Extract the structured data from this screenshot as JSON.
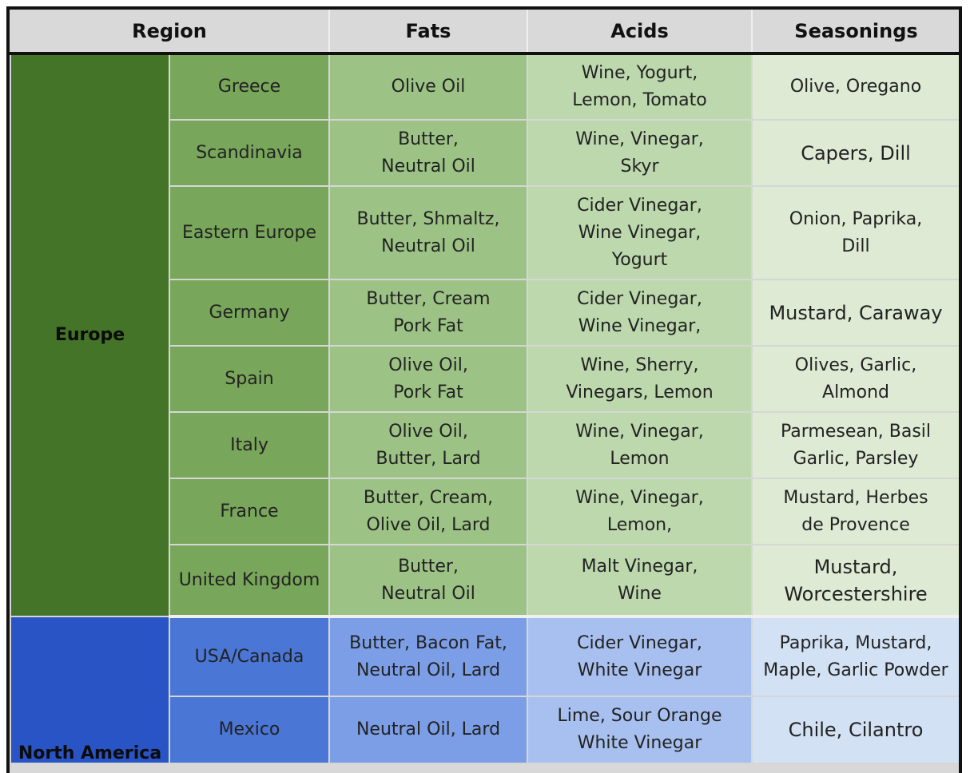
{
  "headers": {
    "region": "Region",
    "fats": "Fats",
    "acids": "Acids",
    "seasonings": "Seasonings"
  },
  "groups": {
    "europe": "Europe",
    "north_america": "North America"
  },
  "rows": [
    {
      "region": "Greece",
      "fats": "Olive Oil",
      "acids": "Wine, Yogurt,\nLemon, Tomato",
      "seasonings": "Olive, Oregano"
    },
    {
      "region": "Scandinavia",
      "fats": "Butter,\nNeutral Oil",
      "acids": "Wine, Vinegar,\nSkyr",
      "seasonings": "Capers, Dill"
    },
    {
      "region": "Eastern Europe",
      "fats": "Butter, Shmaltz,\nNeutral Oil",
      "acids": "Cider Vinegar,\nWine Vinegar,\nYogurt",
      "seasonings": "Onion, Paprika,\nDill"
    },
    {
      "region": "Germany",
      "fats": "Butter, Cream\nPork Fat",
      "acids": "Cider Vinegar,\nWine Vinegar,",
      "seasonings": "Mustard, Caraway"
    },
    {
      "region": "Spain",
      "fats": "Olive Oil,\nPork Fat",
      "acids": "Wine, Sherry,\nVinegars, Lemon",
      "seasonings": "Olives, Garlic,\nAlmond"
    },
    {
      "region": "Italy",
      "fats": "Olive Oil,\nButter, Lard",
      "acids": "Wine, Vinegar,\nLemon",
      "seasonings": "Parmesean, Basil\nGarlic, Parsley"
    },
    {
      "region": "France",
      "fats": "Butter, Cream,\nOlive Oil, Lard",
      "acids": "Wine, Vinegar,\nLemon,",
      "seasonings": "Mustard, Herbes\nde Provence"
    },
    {
      "region": "United Kingdom",
      "fats": "Butter,\nNeutral Oil",
      "acids": "Malt Vinegar,\nWine",
      "seasonings": "Mustard,\nWorcestershire"
    },
    {
      "region": "USA/Canada",
      "fats": "Butter, Bacon Fat,\nNeutral Oil, Lard",
      "acids": "Cider Vinegar,\nWhite Vinegar",
      "seasonings": "Paprika, Mustard,\nMaple, Garlic Powder"
    },
    {
      "region": "Mexico",
      "fats": "Neutral Oil, Lard",
      "acids": "Lime, Sour Orange\nWhite Vinegar",
      "seasonings": "Chile, Cilantro"
    }
  ],
  "colors": {
    "europe_group": "#447427",
    "europe_sub": "#78a65a",
    "europe_fats": "#9cc385",
    "europe_acids": "#bcd8ac",
    "europe_seasonings": "#deead4",
    "na_group": "#2954c5",
    "na_sub": "#4a76d6",
    "na_fats": "#7b9ee6",
    "na_acids": "#a8c0ef",
    "na_seasonings": "#d3e1f4"
  }
}
